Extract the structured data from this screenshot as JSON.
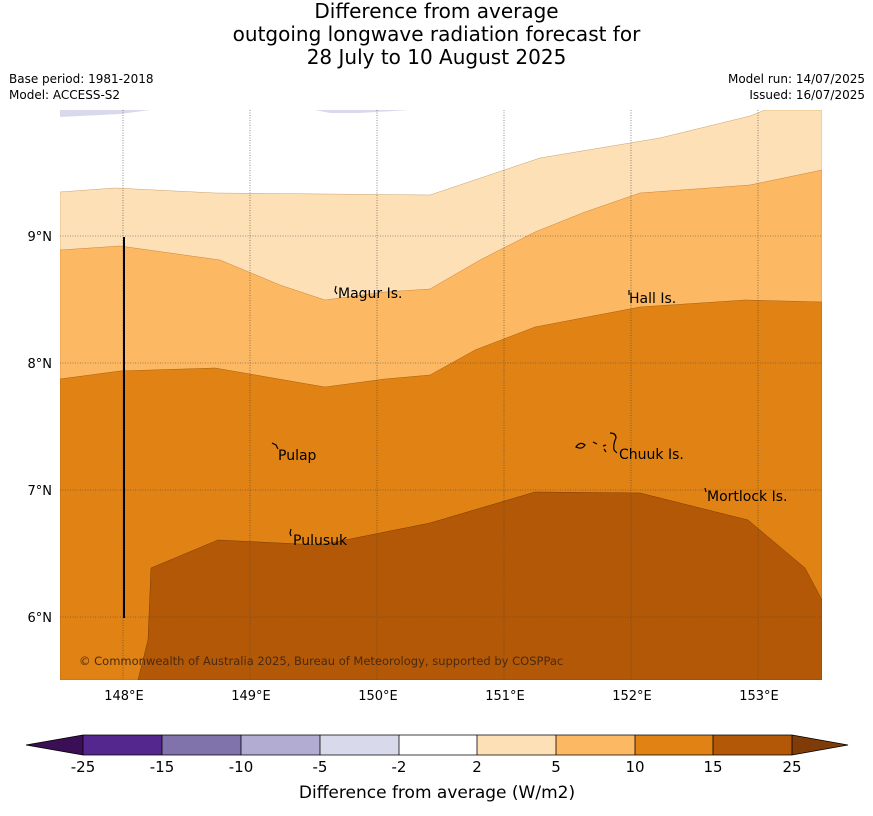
{
  "title": {
    "line1": "Difference from average",
    "line2": "outgoing longwave radiation forecast for",
    "line3": "28 July to 10 August 2025"
  },
  "meta": {
    "base_period": "Base period: 1981-2018",
    "model": "Model: ACCESS-S2",
    "model_run": "Model run: 14/07/2025",
    "issued": "Issued: 16/07/2025"
  },
  "map": {
    "lat_labels": [
      "9°N",
      "8°N",
      "7°N",
      "6°N"
    ],
    "lon_labels": [
      "148°E",
      "149°E",
      "150°E",
      "151°E",
      "152°E",
      "153°E"
    ],
    "places": [
      "Magur Is.",
      "Hall Is.",
      "Pulap",
      "Chuuk Is.",
      "Mortlock Is.",
      "Pulusuk"
    ],
    "copyright": "© Commonwealth of Australia 2025, Bureau of Meteorology, supported by COSPPac"
  },
  "colorbar": {
    "tick_labels": [
      "-25",
      "-15",
      "-10",
      "-5",
      "-2",
      "2",
      "5",
      "10",
      "15",
      "25"
    ],
    "colors": [
      "#3b0f55",
      "#54278f",
      "#8073ac",
      "#b2abd2",
      "#d8daeb",
      "#ffffff",
      "#fee0b6",
      "#fdb863",
      "#e08214",
      "#b35806",
      "#7f3b08"
    ],
    "label": "Difference from average (W/m2)"
  }
}
